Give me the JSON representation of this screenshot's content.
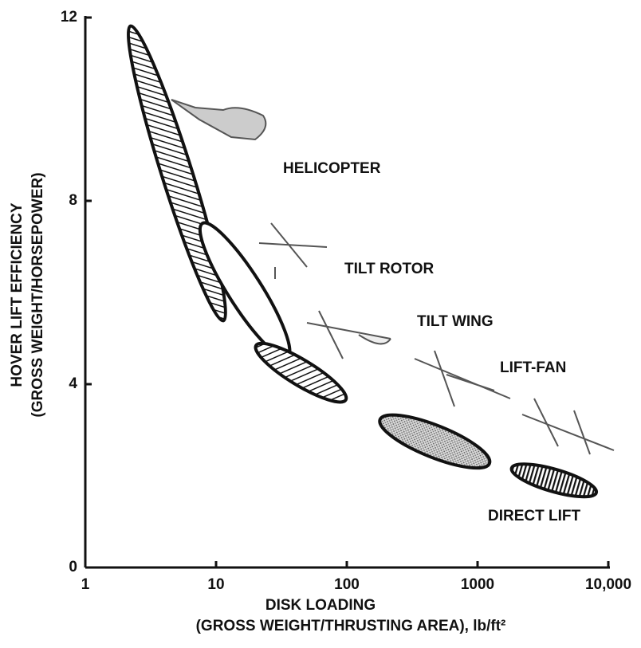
{
  "chart_data": {
    "type": "region",
    "xlabel": "DISK LOADING",
    "xlabel2": "(GROSS WEIGHT/THRUSTING AREA), lb/ft²",
    "ylabel": "HOVER LIFT EFFICIENCY",
    "ylabel2": "(GROSS WEIGHT/HORSEPOWER)",
    "xscale": "log",
    "xlim": [
      1,
      10000
    ],
    "xticks": [
      1,
      10,
      100,
      1000,
      {
        "value": 10000,
        "label": "10,000"
      }
    ],
    "ylim": [
      0,
      12
    ],
    "yticks": [
      0,
      4,
      8,
      12
    ],
    "series": [
      {
        "name": "HELICOPTER",
        "x": [
          2.4,
          10.5
        ],
        "values": [
          11.5,
          5.7
        ],
        "fill": "hatch"
      },
      {
        "name": "TILT ROTOR",
        "x": [
          9.2,
          30
        ],
        "values": [
          7.2,
          4.9
        ],
        "fill": "none"
      },
      {
        "name": "TILT WING",
        "x": [
          24.5,
          81
        ],
        "values": [
          4.7,
          3.8
        ],
        "fill": "hatch"
      },
      {
        "name": "LIFT-FAN",
        "x": [
          233,
          950
        ],
        "values": [
          3.1,
          2.4
        ],
        "fill": "dots"
      },
      {
        "name": "DIRECT LIFT",
        "x": [
          2200,
          6700
        ],
        "values": [
          2.1,
          1.7
        ],
        "fill": "vhatch"
      }
    ]
  }
}
